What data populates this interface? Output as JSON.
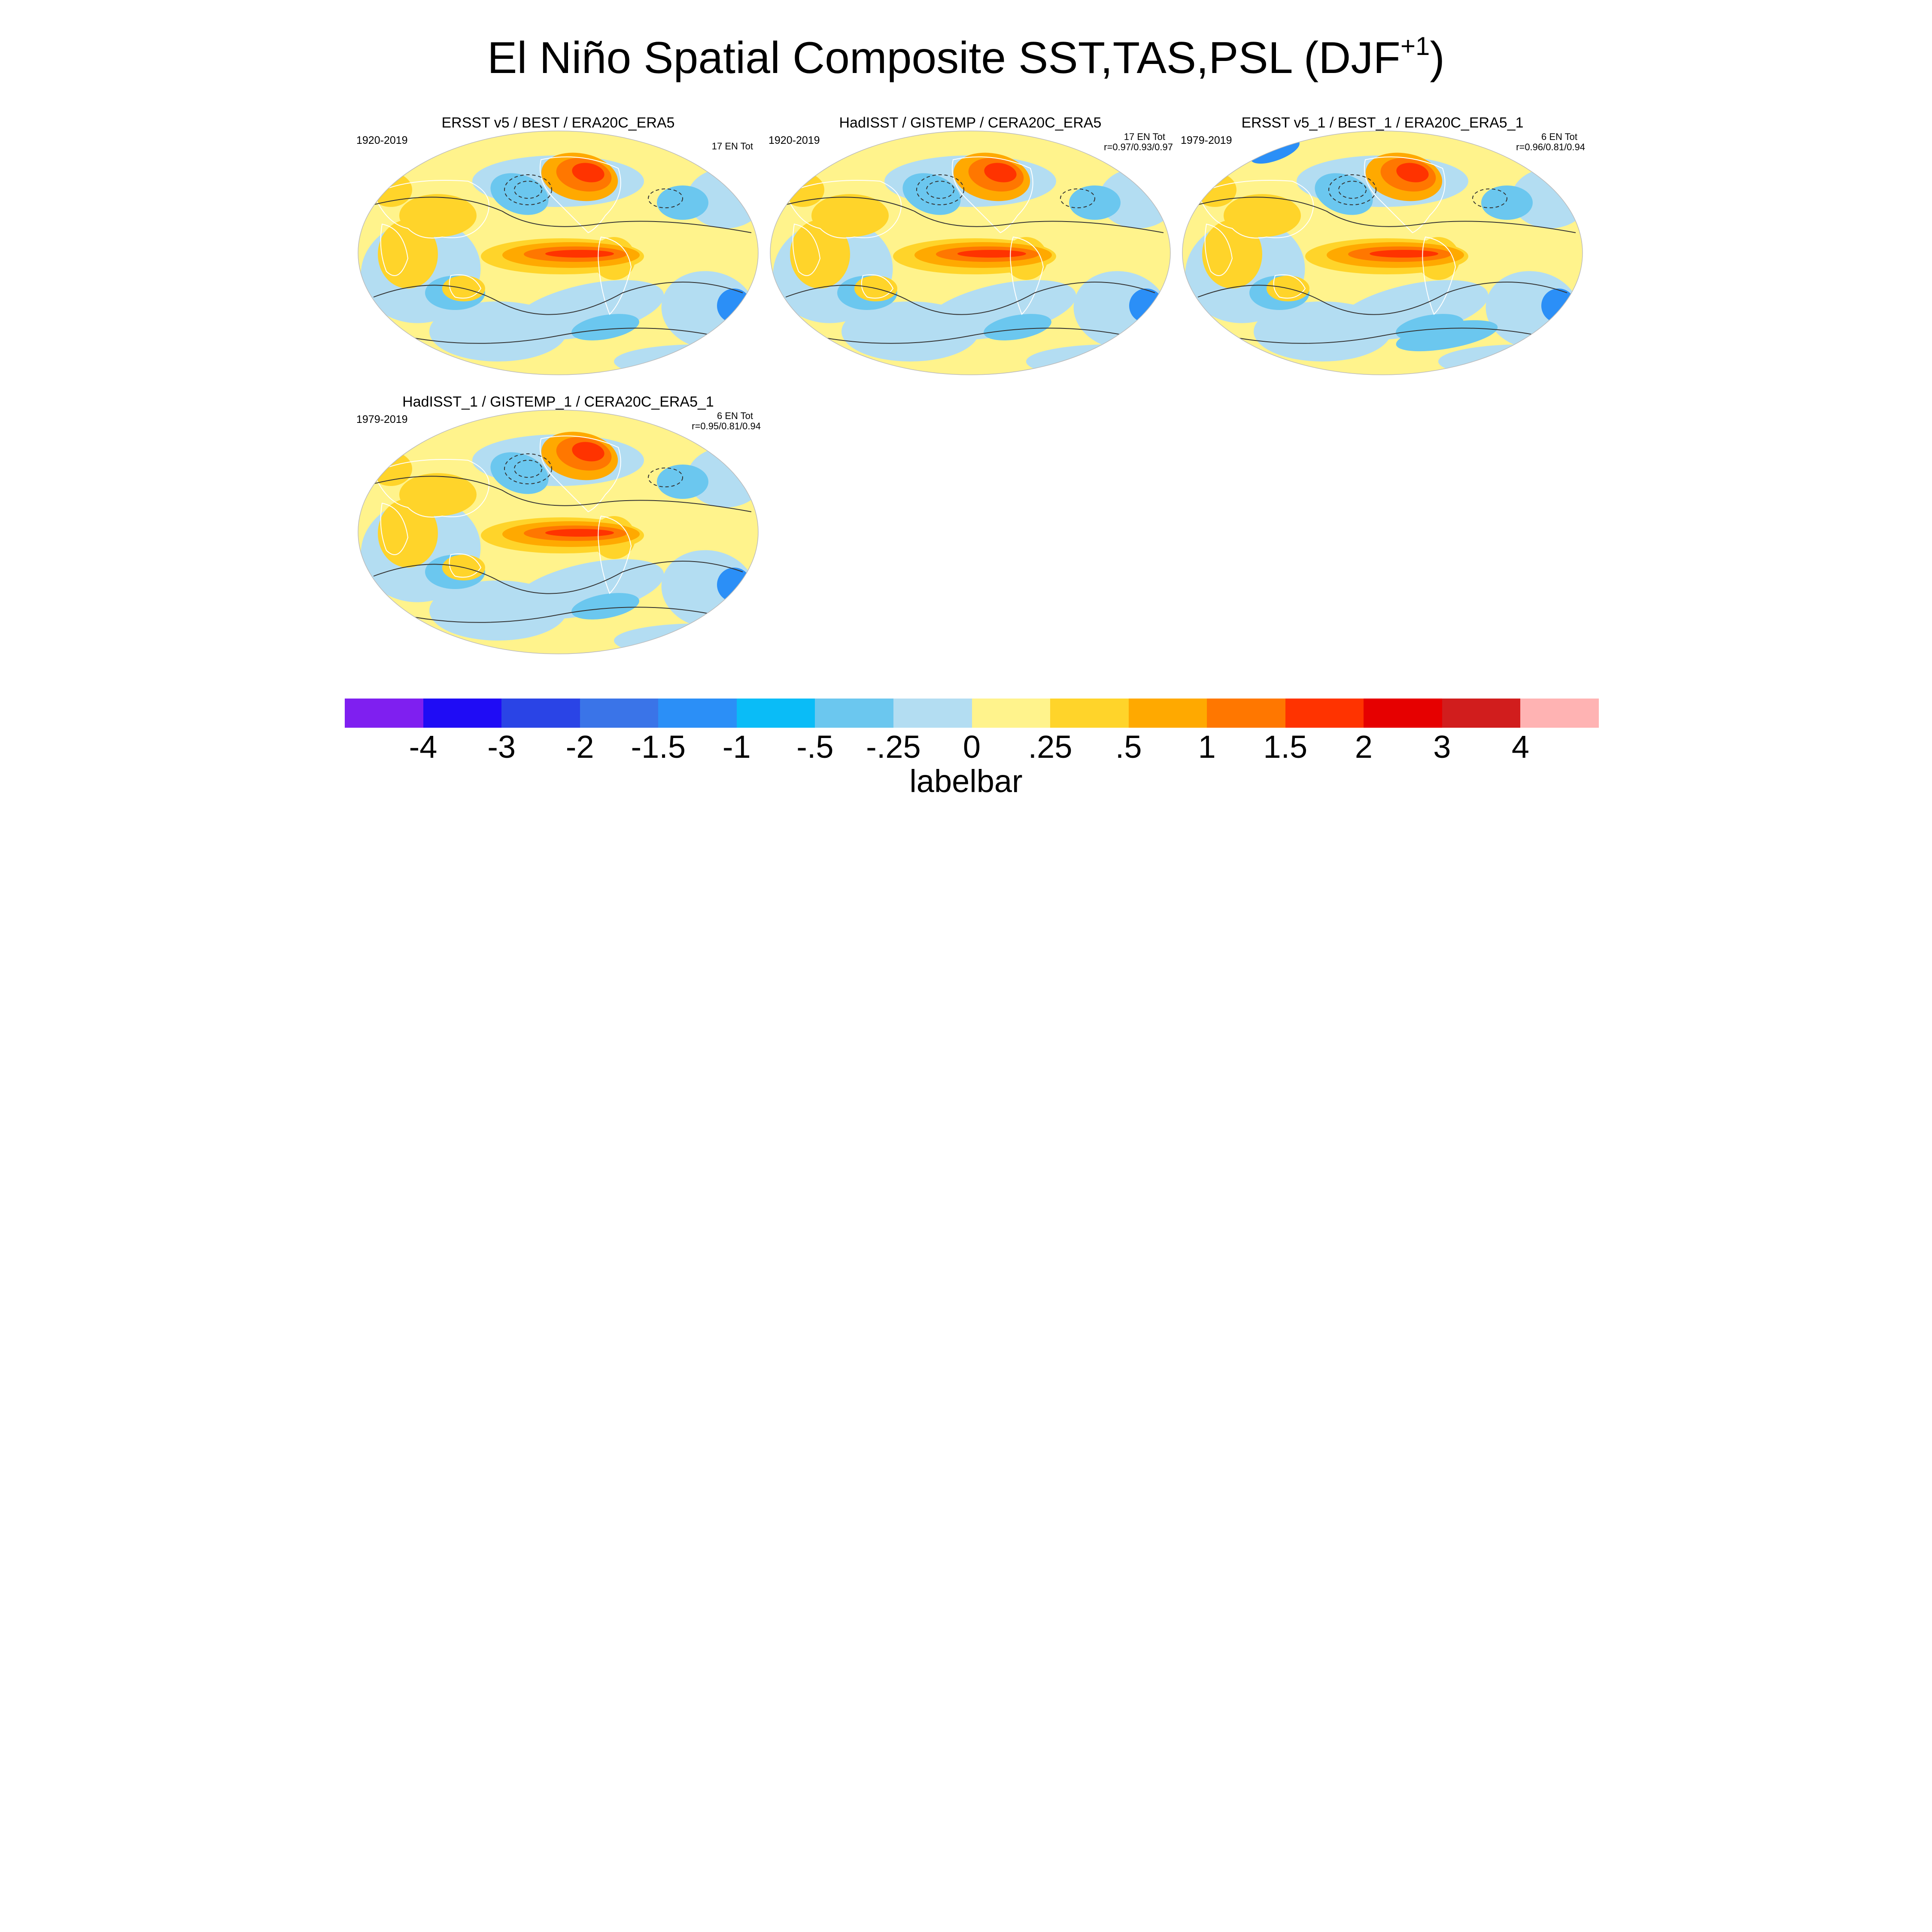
{
  "figure": {
    "title_main": "El Niño Spatial Composite SST,TAS,PSL (DJF",
    "title_sup": "+1",
    "title_close": ")"
  },
  "panels": [
    {
      "title": "ERSST v5 / BEST / ERA20C_ERA5",
      "period": "1920-2019",
      "count": "17 EN Tot",
      "corr": ""
    },
    {
      "title": "HadISST / GISTEMP / CERA20C_ERA5",
      "period": "1920-2019",
      "count": "17 EN Tot",
      "corr": "r=0.97/0.93/0.97"
    },
    {
      "title": "ERSST v5_1 / BEST_1 / ERA20C_ERA5_1",
      "period": "1979-2019",
      "count": "6 EN Tot",
      "corr": "r=0.96/0.81/0.94"
    },
    {
      "title": "HadISST_1 / GISTEMP_1 / CERA20C_ERA5_1",
      "period": "1979-2019",
      "count": "6 EN Tot",
      "corr": "r=0.95/0.81/0.94"
    }
  ],
  "labelbar": {
    "title": "labelbar",
    "tick_labels": [
      "-4",
      "-3",
      "-2",
      "-1.5",
      "-1",
      "-.5",
      "-.25",
      "0",
      ".25",
      ".5",
      "1",
      "1.5",
      "2",
      "3",
      "4"
    ],
    "colors": [
      "#7f1ff0",
      "#1f0cf5",
      "#2a44e6",
      "#3a74e8",
      "#2b8ff7",
      "#0abcf7",
      "#6bc7ef",
      "#b3ddf2",
      "#fff38c",
      "#ffd42a",
      "#ffa900",
      "#ff7700",
      "#ff3300",
      "#e60000",
      "#d11d1d",
      "#ffb3b3"
    ]
  },
  "map_colors": {
    "ocean_base": "#b3ddf2",
    "positive_light": "#fff38c",
    "positive_mid": "#ffd42a",
    "positive_strong": "#ffa900",
    "positive_hot": "#ff7700",
    "positive_max": "#ff3300",
    "negative_mid": "#6bc7ef",
    "negative_strong": "#2b8ff7",
    "coast": "#ffffff",
    "contour": "#333333"
  }
}
